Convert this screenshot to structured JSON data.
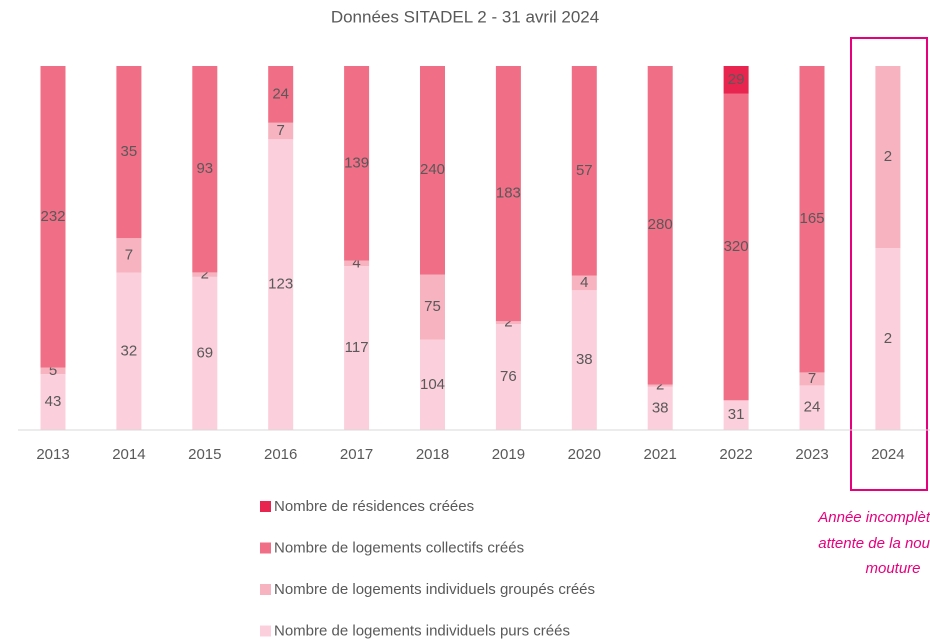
{
  "chart_data": {
    "type": "stacked_bar_100",
    "title": "Données SITADEL 2 - 31 avril 2024",
    "categories": [
      "2013",
      "2014",
      "2015",
      "2016",
      "2017",
      "2018",
      "2019",
      "2020",
      "2021",
      "2022",
      "2023",
      "2024"
    ],
    "series": [
      {
        "name": "Nombre de logements individuels purs créés",
        "color": "#fccfdc",
        "values": [
          43,
          32,
          69,
          123,
          117,
          104,
          76,
          38,
          38,
          31,
          24,
          2
        ]
      },
      {
        "name": "Nombre de logements individuels groupés créés",
        "color": "#f7b3c0",
        "values": [
          5,
          7,
          2,
          7,
          4,
          75,
          2,
          4,
          2,
          null,
          7,
          2
        ]
      },
      {
        "name": "Nombre de logements collectifs créés",
        "color": "#f06e86",
        "values": [
          232,
          35,
          93,
          24,
          139,
          240,
          183,
          57,
          280,
          320,
          165,
          null
        ]
      },
      {
        "name": "Nombre de résidences créées",
        "color": "#e8254f",
        "values": [
          null,
          null,
          null,
          null,
          null,
          null,
          null,
          null,
          null,
          29,
          null,
          null
        ]
      }
    ],
    "annotation": [
      "Année incomplèt",
      "attente de la nou",
      "mouture"
    ]
  }
}
